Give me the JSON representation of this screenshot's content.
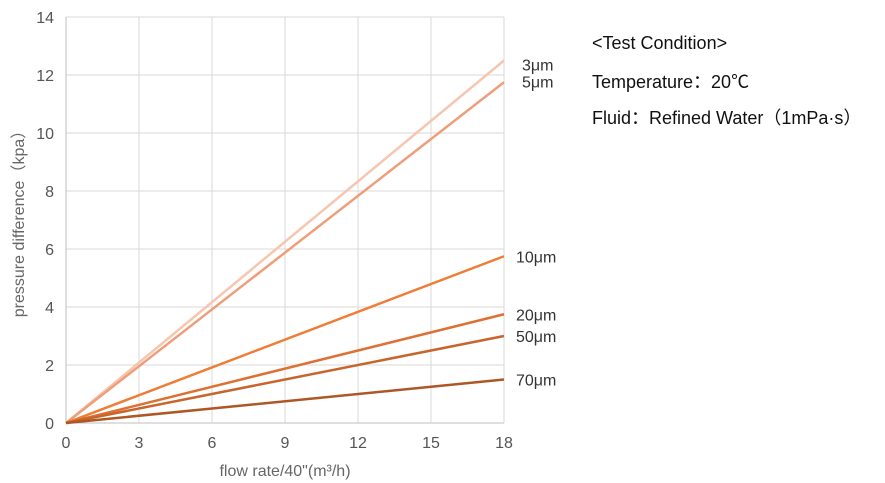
{
  "chart_data": {
    "type": "line",
    "title": "",
    "xlabel": "flow rate/40\"(m³/h)",
    "ylabel": "pressure difference（kpa）",
    "xlim": [
      0,
      18
    ],
    "ylim": [
      0,
      14
    ],
    "xticks": [
      0,
      3,
      6,
      9,
      12,
      15,
      18
    ],
    "yticks": [
      0,
      2,
      4,
      6,
      8,
      10,
      12,
      14
    ],
    "grid": true,
    "legend": "right-end labels",
    "series": [
      {
        "name": "3μm",
        "x": [
          0,
          18
        ],
        "y": [
          0,
          12.5
        ],
        "color": "#f5c6b0"
      },
      {
        "name": "5μm",
        "x": [
          0,
          18
        ],
        "y": [
          0,
          11.75
        ],
        "color": "#ee9e7a"
      },
      {
        "name": "10μm",
        "x": [
          0,
          18
        ],
        "y": [
          0,
          5.75
        ],
        "color": "#ee7d36"
      },
      {
        "name": "20μm",
        "x": [
          0,
          18
        ],
        "y": [
          0,
          3.75
        ],
        "color": "#de7031"
      },
      {
        "name": "50μm",
        "x": [
          0,
          18
        ],
        "y": [
          0,
          3.0
        ],
        "color": "#c7652c"
      },
      {
        "name": "70μm",
        "x": [
          0,
          18
        ],
        "y": [
          0,
          1.5
        ],
        "color": "#ad5824"
      }
    ]
  },
  "conditions": {
    "title": "<Test Condition>",
    "temperature": "Temperature：20℃",
    "fluid": "Fluid：Refined Water（1mPa·s）"
  }
}
